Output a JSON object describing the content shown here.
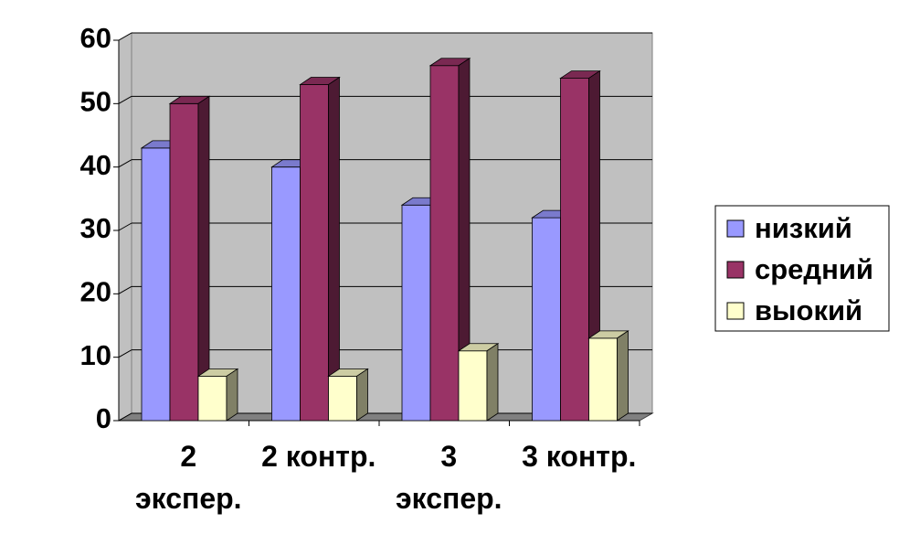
{
  "chart_data": {
    "type": "bar3d",
    "categories": [
      "2 экспер.",
      "2 контр.",
      "3 экспер.",
      "3 контр."
    ],
    "series": [
      {
        "name": "низкий",
        "color": "#9999ff",
        "values": [
          43,
          40,
          34,
          32
        ]
      },
      {
        "name": "средний",
        "color": "#993366",
        "values": [
          50,
          53,
          56,
          54
        ]
      },
      {
        "name": "выокий",
        "color": "#ffffcc",
        "values": [
          7,
          7,
          11,
          13
        ]
      }
    ],
    "ylim": [
      0,
      60
    ],
    "yticks": [
      0,
      10,
      20,
      30,
      40,
      50,
      60
    ],
    "grid": true,
    "legend": "right"
  }
}
